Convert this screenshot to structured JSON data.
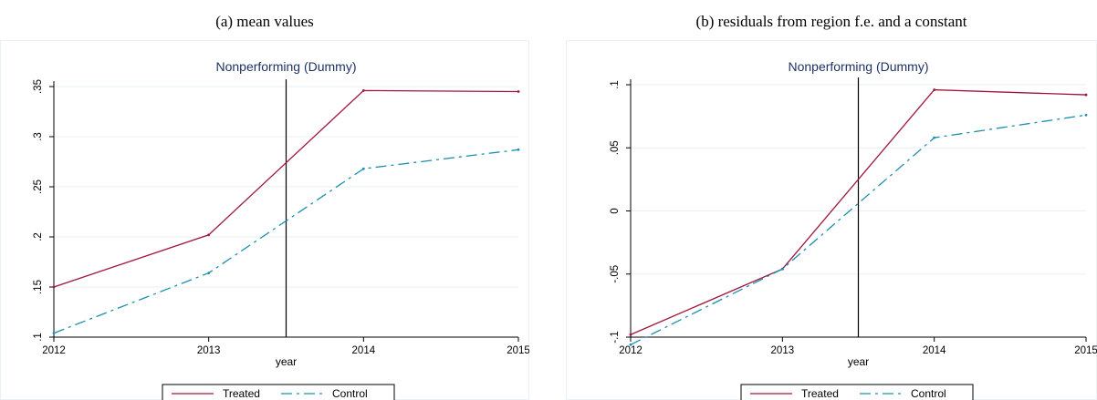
{
  "captions": {
    "left": "(a) mean values",
    "right": "(b) residuals from region f.e. and a constant"
  },
  "colors": {
    "treated": "#a0163a",
    "control": "#1b8fb0",
    "grid": "#eaf0f3",
    "plot_title": "#1e3264"
  },
  "chart_data": [
    {
      "type": "line",
      "title": "Nonperforming (Dummy)",
      "xlabel": "year",
      "ylabel": "",
      "x": [
        2012,
        2013,
        2014,
        2015
      ],
      "x_ticks": [
        "2012",
        "2013",
        "2014",
        "2015"
      ],
      "xlim": [
        2012,
        2015
      ],
      "ylim": [
        0.1,
        0.35
      ],
      "y_ticks": [
        0.1,
        0.15,
        0.2,
        0.25,
        0.3,
        0.35
      ],
      "y_tick_labels": [
        ".1",
        ".15",
        ".2",
        ".25",
        ".3",
        ".35"
      ],
      "vline": 2013.5,
      "grid": true,
      "legend": "bottom",
      "series": [
        {
          "name": "Treated",
          "style": "solid",
          "values": [
            0.15,
            0.202,
            0.346,
            0.345
          ]
        },
        {
          "name": "Control",
          "style": "dashdot",
          "values": [
            0.104,
            0.164,
            0.268,
            0.287
          ]
        }
      ]
    },
    {
      "type": "line",
      "title": "Nonperforming (Dummy)",
      "xlabel": "year",
      "ylabel": "",
      "x": [
        2012,
        2013,
        2014,
        2015
      ],
      "x_ticks": [
        "2012",
        "2013",
        "2014",
        "2015"
      ],
      "xlim": [
        2012,
        2015
      ],
      "ylim": [
        -0.1,
        0.1
      ],
      "y_ticks": [
        -0.1,
        -0.05,
        0,
        0.05,
        0.1
      ],
      "y_tick_labels": [
        "-.1",
        "-.05",
        "0",
        ".05",
        ".1"
      ],
      "vline": 2013.5,
      "grid": true,
      "legend": "bottom",
      "series": [
        {
          "name": "Treated",
          "style": "solid",
          "values": [
            -0.098,
            -0.046,
            0.096,
            0.092
          ]
        },
        {
          "name": "Control",
          "style": "dashdot",
          "values": [
            -0.106,
            -0.046,
            0.058,
            0.076
          ]
        }
      ]
    }
  ]
}
